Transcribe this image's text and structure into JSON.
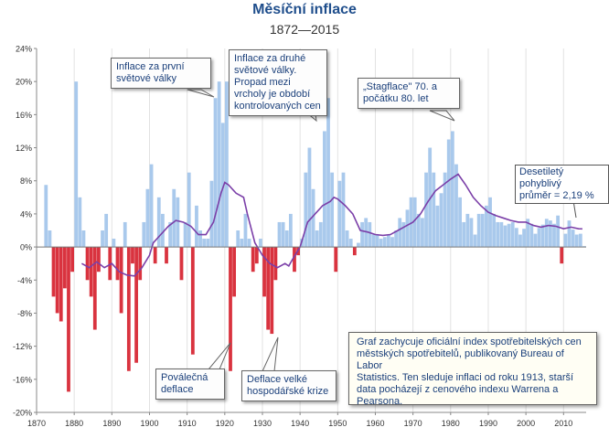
{
  "chart_data": {
    "type": "bar",
    "title": "Měsíční inflace",
    "subtitle": "1872—2015",
    "xlabel": "",
    "ylabel": "",
    "xlim": [
      1870,
      2016
    ],
    "ylim": [
      -20,
      24
    ],
    "y_ticks": [
      "-20%",
      "-16%",
      "-12%",
      "-8%",
      "-4%",
      "0%",
      "4%",
      "8%",
      "12%",
      "16%",
      "20%",
      "24%"
    ],
    "y_tick_values": [
      -20,
      -16,
      -12,
      -8,
      -4,
      0,
      4,
      8,
      12,
      16,
      20,
      24
    ],
    "x_ticks": [
      "1870",
      "1880",
      "1890",
      "1900",
      "1910",
      "1920",
      "1930",
      "1940",
      "1950",
      "1960",
      "1970",
      "1980",
      "1990",
      "2000",
      "2010"
    ],
    "x_tick_values": [
      1870,
      1880,
      1890,
      1900,
      1910,
      1920,
      1930,
      1940,
      1950,
      1960,
      1970,
      1980,
      1990,
      2000,
      2010
    ],
    "grid": "vertical",
    "colors": {
      "positive": "#a9c9ec",
      "negative": "#d9333f",
      "moving_average": "#7b3fa8",
      "axis": "#888888"
    },
    "inflation_series": [
      [
        1872,
        7.5
      ],
      [
        1873,
        2
      ],
      [
        1874,
        -6
      ],
      [
        1875,
        -8
      ],
      [
        1876,
        -9
      ],
      [
        1877,
        -5
      ],
      [
        1878,
        -17.5
      ],
      [
        1879,
        -3
      ],
      [
        1880,
        20
      ],
      [
        1881,
        6
      ],
      [
        1882,
        2
      ],
      [
        1883,
        -4
      ],
      [
        1884,
        -6
      ],
      [
        1885,
        -10
      ],
      [
        1886,
        -3
      ],
      [
        1887,
        2
      ],
      [
        1888,
        4
      ],
      [
        1889,
        -4
      ],
      [
        1890,
        1
      ],
      [
        1891,
        -4
      ],
      [
        1892,
        -8
      ],
      [
        1893,
        3
      ],
      [
        1894,
        -15
      ],
      [
        1895,
        -2
      ],
      [
        1896,
        -14
      ],
      [
        1897,
        -4
      ],
      [
        1898,
        3
      ],
      [
        1899,
        7
      ],
      [
        1900,
        10
      ],
      [
        1901,
        -2
      ],
      [
        1902,
        6
      ],
      [
        1903,
        4
      ],
      [
        1904,
        -2
      ],
      [
        1905,
        3
      ],
      [
        1906,
        7
      ],
      [
        1907,
        6
      ],
      [
        1908,
        -4
      ],
      [
        1909,
        3
      ],
      [
        1910,
        9
      ],
      [
        1911,
        -13
      ],
      [
        1912,
        5
      ],
      [
        1913,
        2
      ],
      [
        1914,
        1
      ],
      [
        1915,
        1
      ],
      [
        1916,
        8
      ],
      [
        1917,
        18
      ],
      [
        1918,
        20
      ],
      [
        1919,
        15
      ],
      [
        1920,
        20
      ],
      [
        1921,
        -15
      ],
      [
        1922,
        -6
      ],
      [
        1923,
        2
      ],
      [
        1924,
        1
      ],
      [
        1925,
        4
      ],
      [
        1926,
        1
      ],
      [
        1927,
        -3
      ],
      [
        1928,
        -2
      ],
      [
        1929,
        1
      ],
      [
        1930,
        -6
      ],
      [
        1931,
        -10
      ],
      [
        1932,
        -10.5
      ],
      [
        1933,
        -4
      ],
      [
        1934,
        3
      ],
      [
        1935,
        3
      ],
      [
        1936,
        2
      ],
      [
        1937,
        4
      ],
      [
        1938,
        -3
      ],
      [
        1939,
        -1
      ],
      [
        1940,
        1
      ],
      [
        1941,
        9
      ],
      [
        1942,
        12
      ],
      [
        1943,
        7
      ],
      [
        1944,
        2
      ],
      [
        1945,
        3
      ],
      [
        1946,
        14
      ],
      [
        1947,
        18
      ],
      [
        1948,
        9
      ],
      [
        1949,
        -3
      ],
      [
        1950,
        8
      ],
      [
        1951,
        9
      ],
      [
        1952,
        2
      ],
      [
        1953,
        1
      ],
      [
        1954,
        -1
      ],
      [
        1955,
        0.5
      ],
      [
        1956,
        3
      ],
      [
        1957,
        3.5
      ],
      [
        1958,
        3
      ],
      [
        1959,
        1.5
      ],
      [
        1960,
        1.5
      ],
      [
        1961,
        1
      ],
      [
        1962,
        1.2
      ],
      [
        1963,
        1.5
      ],
      [
        1964,
        1.2
      ],
      [
        1965,
        2
      ],
      [
        1966,
        3.5
      ],
      [
        1967,
        3
      ],
      [
        1968,
        4.5
      ],
      [
        1969,
        6
      ],
      [
        1970,
        6
      ],
      [
        1971,
        4
      ],
      [
        1972,
        3.5
      ],
      [
        1973,
        9
      ],
      [
        1974,
        12
      ],
      [
        1975,
        9
      ],
      [
        1976,
        5
      ],
      [
        1977,
        6.5
      ],
      [
        1978,
        9
      ],
      [
        1979,
        13
      ],
      [
        1980,
        14
      ],
      [
        1981,
        10
      ],
      [
        1982,
        6
      ],
      [
        1983,
        3
      ],
      [
        1984,
        4
      ],
      [
        1985,
        3.5
      ],
      [
        1986,
        1.5
      ],
      [
        1987,
        4
      ],
      [
        1988,
        4
      ],
      [
        1989,
        5
      ],
      [
        1990,
        6
      ],
      [
        1991,
        4
      ],
      [
        1992,
        3
      ],
      [
        1993,
        3
      ],
      [
        1994,
        2.6
      ],
      [
        1995,
        2.8
      ],
      [
        1996,
        3
      ],
      [
        1997,
        2.3
      ],
      [
        1998,
        1.5
      ],
      [
        1999,
        2.2
      ],
      [
        2000,
        3.4
      ],
      [
        2001,
        2.8
      ],
      [
        2002,
        1.6
      ],
      [
        2003,
        2.3
      ],
      [
        2004,
        2.7
      ],
      [
        2005,
        3.4
      ],
      [
        2006,
        3.2
      ],
      [
        2007,
        2.8
      ],
      [
        2008,
        3.8
      ],
      [
        2009,
        -2
      ],
      [
        2010,
        1.6
      ],
      [
        2011,
        3.2
      ],
      [
        2012,
        2.1
      ],
      [
        2013,
        1.5
      ],
      [
        2014,
        1.6
      ],
      [
        2015,
        0.1
      ]
    ],
    "moving_average": [
      [
        1882,
        -2
      ],
      [
        1884,
        -2.5
      ],
      [
        1886,
        -1.8
      ],
      [
        1888,
        -2.5
      ],
      [
        1890,
        -2
      ],
      [
        1892,
        -3
      ],
      [
        1894,
        -3.4
      ],
      [
        1896,
        -3.5
      ],
      [
        1898,
        -2.5
      ],
      [
        1900,
        -1
      ],
      [
        1901,
        0.5
      ],
      [
        1903,
        1.5
      ],
      [
        1905,
        2.5
      ],
      [
        1907,
        3.2
      ],
      [
        1909,
        3
      ],
      [
        1911,
        2.5
      ],
      [
        1913,
        1.5
      ],
      [
        1915,
        1.5
      ],
      [
        1917,
        3
      ],
      [
        1919,
        6.5
      ],
      [
        1920,
        7.8
      ],
      [
        1921,
        7.5
      ],
      [
        1923,
        6.5
      ],
      [
        1925,
        6
      ],
      [
        1926,
        4
      ],
      [
        1928,
        0.5
      ],
      [
        1930,
        -1
      ],
      [
        1932,
        -2
      ],
      [
        1934,
        -2.5
      ],
      [
        1936,
        -2
      ],
      [
        1937,
        -2.3
      ],
      [
        1938,
        -1.5
      ],
      [
        1940,
        0
      ],
      [
        1942,
        3
      ],
      [
        1944,
        4
      ],
      [
        1946,
        5
      ],
      [
        1948,
        5.5
      ],
      [
        1949,
        6
      ],
      [
        1950,
        5.8
      ],
      [
        1952,
        5
      ],
      [
        1954,
        4
      ],
      [
        1956,
        2
      ],
      [
        1958,
        1.8
      ],
      [
        1960,
        1.5
      ],
      [
        1962,
        1.4
      ],
      [
        1964,
        1.5
      ],
      [
        1966,
        2
      ],
      [
        1968,
        2.5
      ],
      [
        1970,
        3
      ],
      [
        1972,
        4
      ],
      [
        1974,
        5.5
      ],
      [
        1976,
        6.8
      ],
      [
        1978,
        7.5
      ],
      [
        1980,
        8.2
      ],
      [
        1982,
        8.8
      ],
      [
        1984,
        7.5
      ],
      [
        1986,
        6
      ],
      [
        1988,
        5
      ],
      [
        1990,
        4.2
      ],
      [
        1992,
        3.8
      ],
      [
        1994,
        3.5
      ],
      [
        1996,
        3.2
      ],
      [
        1998,
        3
      ],
      [
        2000,
        3
      ],
      [
        2002,
        2.6
      ],
      [
        2004,
        2.4
      ],
      [
        2006,
        2.6
      ],
      [
        2008,
        2.5
      ],
      [
        2010,
        2.2
      ],
      [
        2012,
        2.4
      ],
      [
        2014,
        2.2
      ],
      [
        2015,
        2.19
      ]
    ],
    "annotations": [
      "Inflace za první\nsvětové války",
      "Inflace za druhé\nsvětové války.\nPropad mezi\nvrcholy je období\nkontrolovaných cen",
      "„Stagflace\" 70. a\npočátku 80. let",
      "Desetiletý pohyblivý\nprůměr = 2,19 %",
      "Poválečná\ndeflace",
      "Deflace velké\nhospodářské krize",
      "Graf zachycuje oficiální index spotřebitelských cen\nměstských spotřebitelů, publikovaný Bureau of Labor\nStatistics. Ten sleduje inflaci od roku 1913, starší\ndata pocházejí z cenového indexu Warrena a\nPearsona."
    ]
  }
}
